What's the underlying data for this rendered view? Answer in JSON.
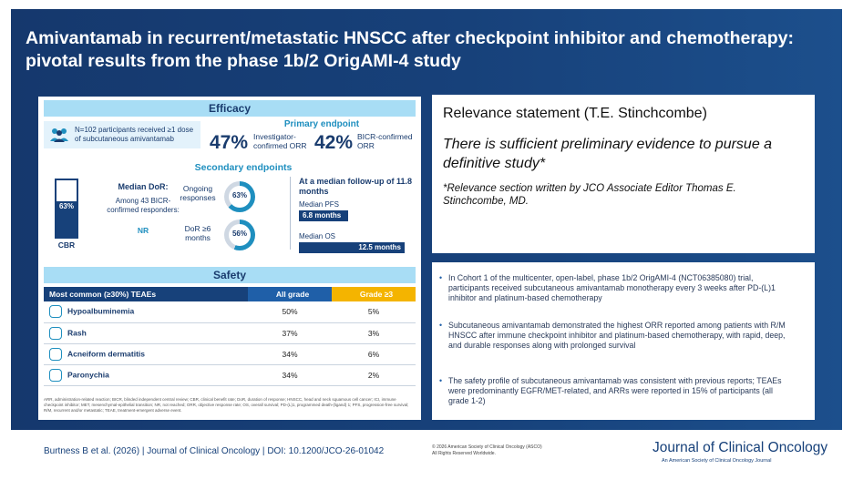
{
  "title": "Amivantamab in recurrent/metastatic HNSCC after checkpoint inhibitor and chemotherapy: pivotal results from the phase 1b/2 OrigAMI-4 study",
  "efficacy": {
    "header": "Efficacy",
    "participants": "N=102 participants received ≥1 dose of subcutaneous amivantamab",
    "primary_label": "Primary endpoint",
    "orr_inv_value": "47%",
    "orr_inv_label": "Investigator-confirmed ORR",
    "orr_bicr_value": "42%",
    "orr_bicr_label": "BICR-confirmed ORR",
    "secondary_label": "Secondary endpoints",
    "cbr_value": "63%",
    "cbr_label": "CBR",
    "cbr_fraction": 0.63,
    "dor_title": "Median DoR:",
    "dor_sub": "Among 43 BICR-confirmed responders:",
    "dor_value": "NR",
    "ongoing_label": "Ongoing responses",
    "ongoing_value": "63%",
    "dor6_label": "DoR ≥6 months",
    "dor6_value": "56%",
    "followup_label": "At a median follow-up of 11.8 months",
    "pfs_label": "Median PFS",
    "pfs_value": "6.8 months",
    "os_label": "Median OS",
    "os_value": "12.5 months"
  },
  "safety": {
    "header": "Safety",
    "col_teae": "Most common (≥30%) TEAEs",
    "col_all": "All grade",
    "col_g3": "Grade ≥3",
    "rows": [
      {
        "name": "Hypoalbuminemia",
        "all": "50%",
        "g3": "5%"
      },
      {
        "name": "Rash",
        "all": "37%",
        "g3": "3%"
      },
      {
        "name": "Acneiform dermatitis",
        "all": "34%",
        "g3": "6%"
      },
      {
        "name": "Paronychia",
        "all": "34%",
        "g3": "2%"
      }
    ],
    "footnote": "ARR, administration-related reaction; BICR, blinded independent central review; CBR, clinical benefit rate; DoR, duration of response; HNSCC, head and neck squamous cell cancer; ICI, immune checkpoint inhibitor; MET, mesenchymal-epithelial transition; NR, not reached; ORR, objective response rate; OS, overall survival; PD-(L)1, programmed death-(ligand) 1; PFS, progression-free survival; R/M, recurrent and/or metastatic; TEAE, treatment-emergent adverse event."
  },
  "relevance": {
    "heading": "Relevance statement (T.E. Stinchcombe)",
    "quote": "There is sufficient preliminary evidence to pursue a definitive study*",
    "note": "*Relevance section written by JCO Associate Editor Thomas E. Stinchcombe, MD."
  },
  "bullets": [
    "In Cohort 1 of the multicenter, open-label, phase 1b/2 OrigAMI-4 (NCT06385080) trial, participants received subcutaneous amivantamab monotherapy every 3 weeks after PD-(L)1 inhibitor and platinum-based chemotherapy",
    "Subcutaneous amivantamab demonstrated the highest ORR reported among patients with R/M HNSCC after immune checkpoint inhibitor and platinum-based chemotherapy, with rapid, deep, and durable responses along with prolonged survival",
    "The safety profile of subcutaneous amivantamab was consistent with previous reports; TEAEs were predominantly EGFR/MET-related, and ARRs were reported in 15% of participants (all grade 1-2)"
  ],
  "footer": {
    "citation": "Burtness B et al. (2026) | Journal of Clinical Oncology | DOI: 10.1200/JCO-26-01042",
    "copyright_1": "© 2026 American Society of Clinical Oncology (ASCO)",
    "copyright_2": "All Rights Reserved Worldwide.",
    "journal": "Journal of Clinical Oncology",
    "journal_sub": "An American Society of Clinical Oncology Journal"
  },
  "colors": {
    "navy": "#17417a",
    "teal": "#1f8fbf",
    "light_blue": "#a8ddf5",
    "gold": "#f4b400"
  },
  "icons": [
    "people-icon",
    "vial-icon",
    "rash-icon",
    "skin-icon",
    "finger-icon"
  ]
}
